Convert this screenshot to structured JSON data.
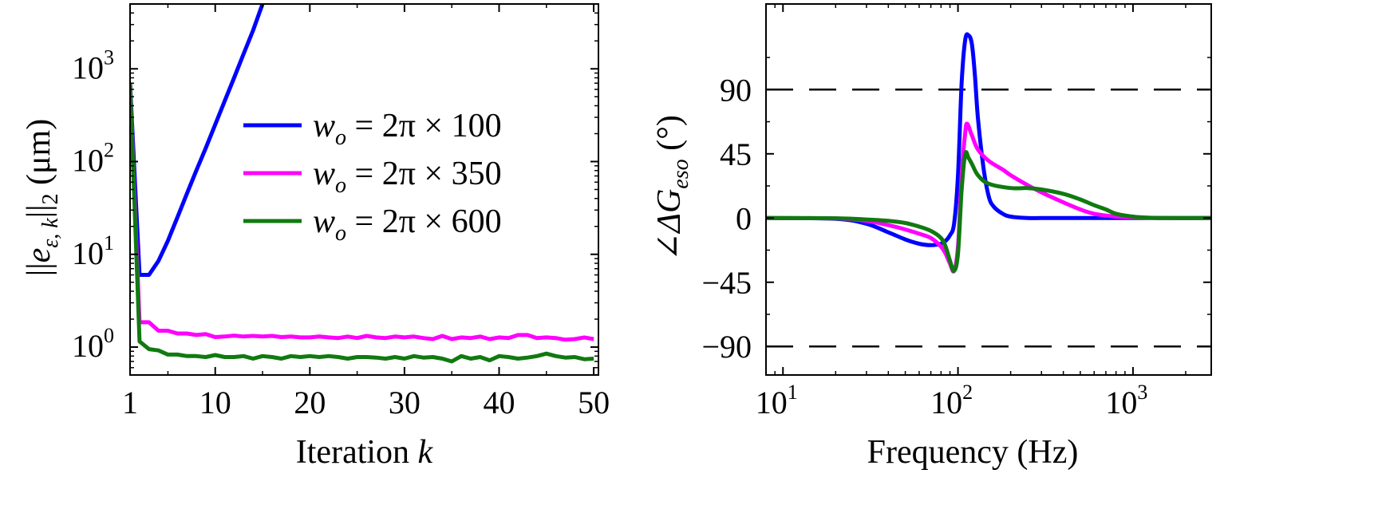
{
  "chart_data": [
    {
      "type": "line",
      "xlabel": {
        "main": "Iteration ",
        "italic": "k"
      },
      "ylabel": {
        "pre": "||",
        "var": "e",
        "sub": "ε, k",
        "post": "||",
        "post_sub": "2",
        "unit": " (μm)"
      },
      "xlim": [
        1,
        50.5
      ],
      "ylim": [
        0.5,
        5000
      ],
      "yscale": "log",
      "xticks": [
        1,
        10,
        20,
        30,
        40,
        50
      ],
      "xtick_labels": [
        "1",
        "10",
        "20",
        "30",
        "40",
        "50"
      ],
      "yticks": [
        1,
        10,
        100,
        1000
      ],
      "ytick_labels": [
        {
          "base": "10",
          "exp": "0"
        },
        {
          "base": "10",
          "exp": "1"
        },
        {
          "base": "10",
          "exp": "2"
        },
        {
          "base": "10",
          "exp": "3"
        }
      ],
      "legend": "upper-right",
      "series": [
        {
          "name": "w_o = 2π × 100",
          "label_var": "w",
          "label_sub": "o",
          "label_rest": " = 2π × 100",
          "color": "#0000ff",
          "x": [
            1,
            2,
            3,
            4,
            5,
            6,
            7,
            8,
            9,
            10,
            11,
            12,
            13,
            14,
            15
          ],
          "y": [
            700,
            6,
            6,
            8.5,
            14,
            25,
            45,
            80,
            140,
            250,
            450,
            800,
            1450,
            2600,
            5000
          ]
        },
        {
          "name": "w_o = 2π × 350",
          "label_var": "w",
          "label_sub": "o",
          "label_rest": " = 2π × 350",
          "color": "#ff00ff",
          "x": [
            1,
            2,
            3,
            4,
            5,
            6,
            7,
            8,
            9,
            10,
            11,
            12,
            13,
            14,
            15,
            16,
            17,
            18,
            19,
            20,
            21,
            22,
            23,
            24,
            25,
            26,
            27,
            28,
            29,
            30,
            31,
            32,
            33,
            34,
            35,
            36,
            37,
            38,
            39,
            40,
            41,
            42,
            43,
            44,
            45,
            46,
            47,
            48,
            49,
            50
          ],
          "y": [
            700,
            1.85,
            1.85,
            1.5,
            1.5,
            1.4,
            1.4,
            1.35,
            1.38,
            1.28,
            1.3,
            1.33,
            1.3,
            1.32,
            1.3,
            1.32,
            1.28,
            1.3,
            1.27,
            1.27,
            1.3,
            1.27,
            1.25,
            1.3,
            1.25,
            1.32,
            1.27,
            1.25,
            1.3,
            1.27,
            1.3,
            1.25,
            1.22,
            1.32,
            1.22,
            1.27,
            1.25,
            1.3,
            1.22,
            1.27,
            1.25,
            1.35,
            1.35,
            1.25,
            1.27,
            1.25,
            1.2,
            1.22,
            1.27,
            1.22
          ]
        },
        {
          "name": "w_o = 2π × 600",
          "label_var": "w",
          "label_sub": "o",
          "label_rest": " = 2π × 600",
          "color": "#107a10",
          "x": [
            1,
            2,
            3,
            4,
            5,
            6,
            7,
            8,
            9,
            10,
            11,
            12,
            13,
            14,
            15,
            16,
            17,
            18,
            19,
            20,
            21,
            22,
            23,
            24,
            25,
            26,
            27,
            28,
            29,
            30,
            31,
            32,
            33,
            34,
            35,
            36,
            37,
            38,
            39,
            40,
            41,
            42,
            43,
            44,
            45,
            46,
            47,
            48,
            49,
            50
          ],
          "y": [
            700,
            1.15,
            0.95,
            0.92,
            0.83,
            0.83,
            0.8,
            0.8,
            0.78,
            0.82,
            0.78,
            0.78,
            0.8,
            0.75,
            0.8,
            0.78,
            0.75,
            0.8,
            0.78,
            0.8,
            0.78,
            0.8,
            0.78,
            0.75,
            0.78,
            0.78,
            0.77,
            0.75,
            0.78,
            0.75,
            0.8,
            0.77,
            0.78,
            0.75,
            0.7,
            0.8,
            0.75,
            0.78,
            0.72,
            0.8,
            0.78,
            0.75,
            0.77,
            0.8,
            0.85,
            0.8,
            0.77,
            0.78,
            0.74,
            0.75
          ]
        }
      ]
    },
    {
      "type": "line",
      "xlabel": "Frequency (Hz)",
      "ylabel": {
        "pre": "∠ΔG",
        "sub": "eso",
        "post": " (°)"
      },
      "xscale": "log",
      "xlim": [
        8,
        2800
      ],
      "ylim": [
        -110,
        150
      ],
      "xticks": [
        10,
        100,
        1000
      ],
      "xtick_labels": [
        {
          "base": "10",
          "exp": "1"
        },
        {
          "base": "10",
          "exp": "2"
        },
        {
          "base": "10",
          "exp": "3"
        }
      ],
      "yticks": [
        90,
        45,
        0,
        -45,
        -90
      ],
      "ytick_labels": [
        "90",
        "45",
        "0",
        "−45",
        "−90"
      ],
      "reference_lines": [
        90,
        -90
      ],
      "series": [
        {
          "name": "w_o = 2π × 100",
          "color": "#0000ff",
          "x": [
            8,
            20,
            30,
            40,
            50,
            60,
            70,
            80,
            85,
            90,
            95,
            100,
            105,
            110,
            115,
            120,
            125,
            130,
            140,
            150,
            160,
            180,
            200,
            250,
            300,
            400,
            600,
            1000,
            2800
          ],
          "y": [
            0,
            -0.5,
            -4,
            -10,
            -15,
            -18,
            -19,
            -18,
            -16,
            -12,
            -4,
            30,
            95,
            125,
            128,
            122,
            100,
            70,
            35,
            15,
            8,
            3,
            1,
            0,
            0,
            0,
            0,
            0,
            0
          ]
        },
        {
          "name": "w_o = 2π × 350",
          "color": "#ff00ff",
          "x": [
            8,
            20,
            30,
            40,
            50,
            60,
            70,
            80,
            85,
            90,
            95,
            100,
            105,
            110,
            113,
            120,
            130,
            150,
            180,
            200,
            250,
            300,
            400,
            500,
            600,
            800,
            1000,
            1500,
            2800
          ],
          "y": [
            0,
            -0.3,
            -2,
            -5,
            -8,
            -11,
            -14,
            -20,
            -25,
            -32,
            -37,
            -20,
            30,
            60,
            66,
            58,
            48,
            40,
            34,
            30,
            23,
            18,
            11,
            6,
            3,
            1,
            0.5,
            0,
            0
          ]
        },
        {
          "name": "w_o = 2π × 600",
          "color": "#107a10",
          "x": [
            8,
            20,
            30,
            40,
            50,
            60,
            70,
            80,
            85,
            90,
            95,
            100,
            105,
            110,
            115,
            120,
            130,
            150,
            200,
            250,
            300,
            400,
            500,
            600,
            700,
            800,
            1000,
            1200,
            1500,
            2800
          ],
          "y": [
            0,
            -0.2,
            -1,
            -2,
            -3.5,
            -6,
            -9,
            -14,
            -20,
            -30,
            -37,
            -25,
            20,
            45,
            42,
            38,
            30,
            24,
            21,
            21,
            20,
            17,
            13,
            9,
            6,
            3,
            1,
            0.3,
            0,
            0
          ]
        }
      ]
    }
  ]
}
